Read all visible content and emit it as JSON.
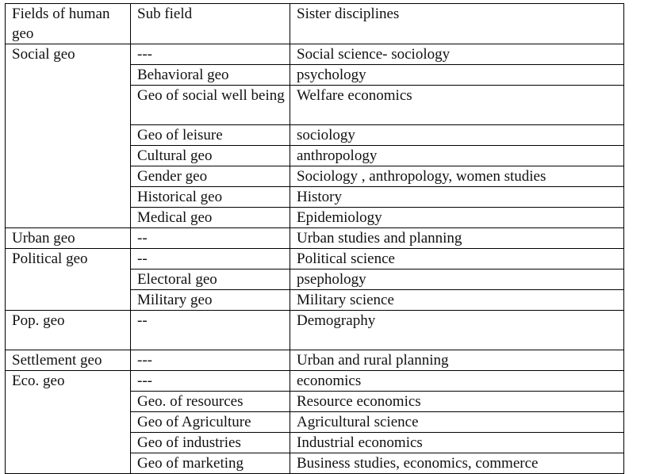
{
  "header": {
    "fields": "Fields of human geo",
    "subfield": "Sub field",
    "sister": "Sister disciplines"
  },
  "rows": [
    {
      "field": "Social geo",
      "subfield": "---",
      "sister": "Social science- sociology"
    },
    {
      "field": "",
      "subfield": "Behavioral geo",
      "sister": "psychology"
    },
    {
      "field": "",
      "subfield": "Geo of social well being",
      "sister": "Welfare economics"
    },
    {
      "field": "",
      "subfield": "Geo of leisure",
      "sister": "sociology"
    },
    {
      "field": "",
      "subfield": "Cultural geo",
      "sister": "anthropology"
    },
    {
      "field": "",
      "subfield": "Gender geo",
      "sister": "Sociology , anthropology, women studies"
    },
    {
      "field": "",
      "subfield": "Historical geo",
      "sister": "History"
    },
    {
      "field": "",
      "subfield": "Medical geo",
      "sister": "Epidemiology"
    },
    {
      "field": "Urban geo",
      "subfield": "--",
      "sister": "Urban studies and planning"
    },
    {
      "field": "Political geo",
      "subfield": "--",
      "sister": "Political science"
    },
    {
      "field": "",
      "subfield": "Electoral geo",
      "sister": "psephology"
    },
    {
      "field": "",
      "subfield": "Military geo",
      "sister": "Military science"
    },
    {
      "field": "Pop. geo",
      "subfield": "--",
      "sister": "Demography"
    },
    {
      "field": "Settlement geo",
      "subfield": "---",
      "sister": "Urban and rural planning"
    },
    {
      "field": "Eco. geo",
      "subfield": "---",
      "sister": "economics"
    },
    {
      "field": "",
      "subfield": "Geo. of resources",
      "sister": "Resource economics"
    },
    {
      "field": "",
      "subfield": "Geo of Agriculture",
      "sister": "Agricultural science"
    },
    {
      "field": "",
      "subfield": "Geo of industries",
      "sister": "Industrial economics"
    },
    {
      "field": "",
      "subfield": "Geo of marketing",
      "sister": "Business studies, economics, commerce"
    }
  ]
}
